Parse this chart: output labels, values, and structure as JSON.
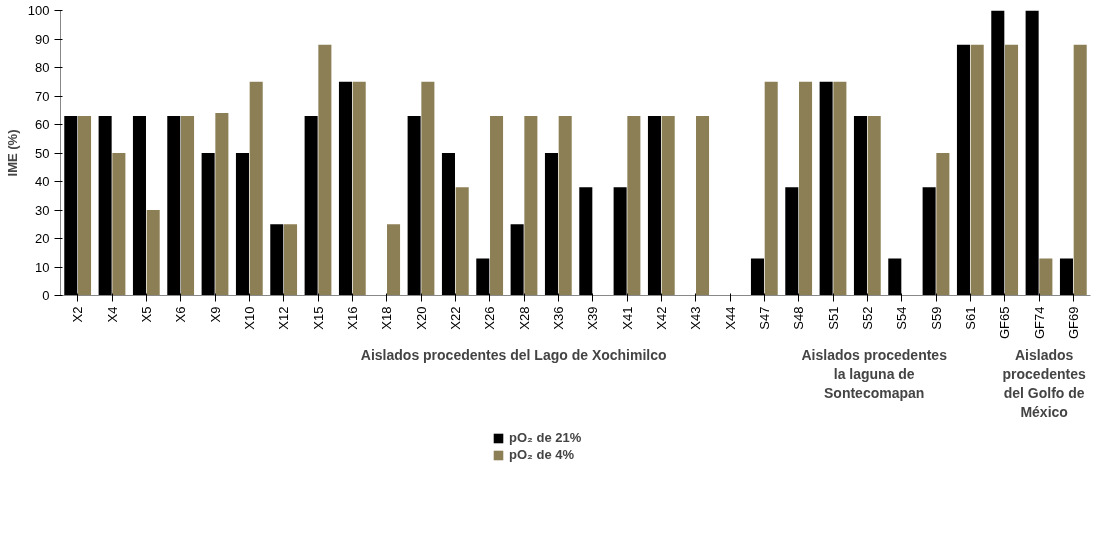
{
  "chart_data": {
    "type": "bar",
    "ylabel": "IME (%)",
    "categories": [
      "X2",
      "X4",
      "X5",
      "X6",
      "X9",
      "X10",
      "X12",
      "X15",
      "X16",
      "X18",
      "X20",
      "X22",
      "X26",
      "X28",
      "X36",
      "X39",
      "X41",
      "X42",
      "X43",
      "X44",
      "S47",
      "S48",
      "S51",
      "S52",
      "S54",
      "S59",
      "S61",
      "GF65",
      "GF74",
      "GF69"
    ],
    "series": [
      {
        "name": "pO₂ de 21%",
        "color": "#000000",
        "values": [
          63,
          63,
          63,
          63,
          50,
          50,
          25,
          63,
          75,
          0,
          63,
          50,
          13,
          25,
          50,
          38,
          38,
          63,
          0,
          0,
          13,
          38,
          75,
          63,
          13,
          38,
          88,
          100,
          100,
          13
        ]
      },
      {
        "name": "pO₂ de 4%",
        "color": "#8c7f55",
        "values": [
          63,
          50,
          30,
          63,
          64,
          75,
          25,
          88,
          75,
          25,
          75,
          38,
          63,
          63,
          63,
          0,
          63,
          63,
          63,
          0,
          75,
          75,
          75,
          63,
          0,
          50,
          88,
          88,
          13,
          88
        ]
      }
    ],
    "ylim": [
      0,
      100
    ],
    "yticks": [
      0,
      10,
      20,
      30,
      40,
      50,
      60,
      70,
      80,
      90,
      100
    ],
    "grid": false,
    "legend": "bottom",
    "annotations": [
      "Aislados procedentes del Lago de Xochimilco",
      "Aislados procedentes la laguna de Sontecomapan",
      "Aislados procedentes del Golfo de México"
    ]
  }
}
